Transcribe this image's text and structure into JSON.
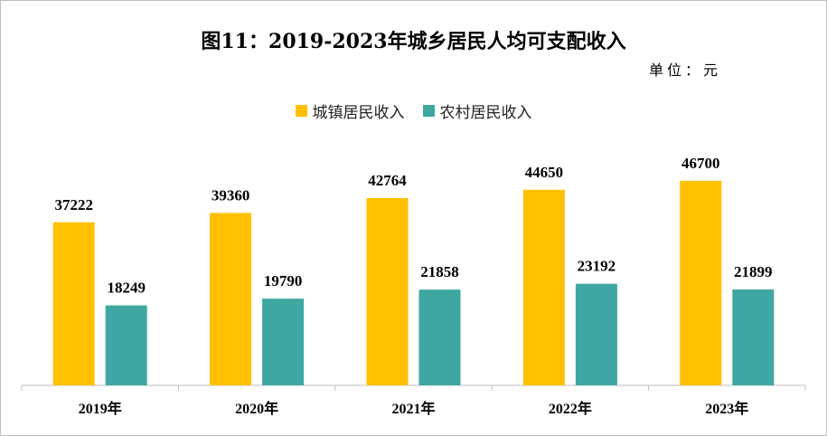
{
  "chart_data": {
    "type": "bar",
    "title": "图11：2019-2023年城乡居民人均可支配收入",
    "unit": "单位：元",
    "categories": [
      "2019年",
      "2020年",
      "2021年",
      "2022年",
      "2023年"
    ],
    "series": [
      {
        "name": "城镇居民收入",
        "color": "#FFC000",
        "values": [
          37222,
          39360,
          42764,
          44650,
          46700
        ]
      },
      {
        "name": "农村居民收入",
        "color": "#3FA7A1",
        "values": [
          18249,
          19790,
          21858,
          23192,
          21899
        ]
      }
    ],
    "ylim": [
      0,
      57000
    ],
    "grid": false,
    "legend_position": "top"
  }
}
